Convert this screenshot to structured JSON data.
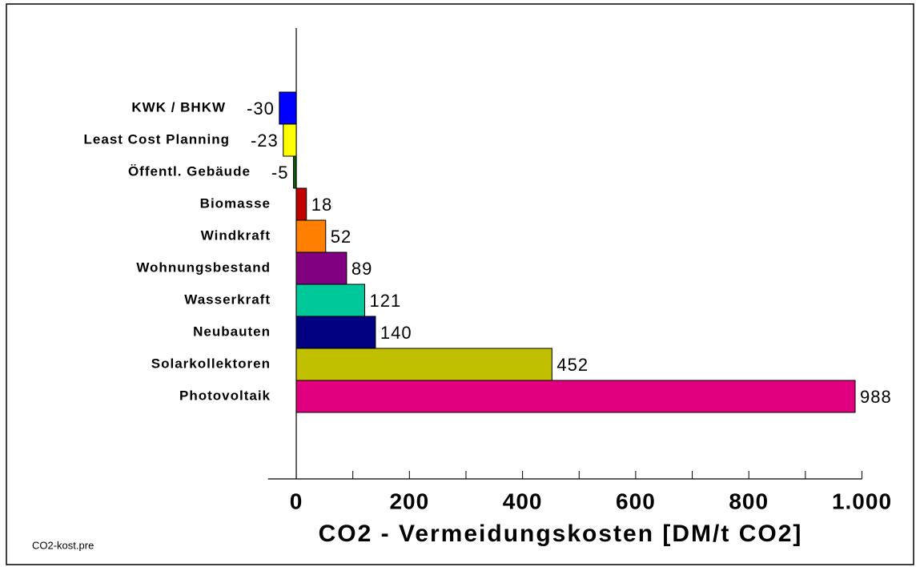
{
  "chart_data": {
    "type": "bar",
    "orientation": "horizontal",
    "x_axis_label": "CO2 - Vermeidungskosten [DM/t CO2]",
    "footnote": "CO2-kost.pre",
    "categories": [
      "KWK / BHKW",
      "Least Cost Planning",
      "Öffentl. Gebäude",
      "Biomasse",
      "Windkraft",
      "Wohnungsbestand",
      "Wasserkraft",
      "Neubauten",
      "Solarkollektoren",
      "Photovoltaik"
    ],
    "values": [
      -30,
      -23,
      -5,
      18,
      52,
      89,
      121,
      140,
      452,
      988
    ],
    "colors": [
      "#0000ff",
      "#ffff00",
      "#006400",
      "#c00000",
      "#ff8000",
      "#800080",
      "#00c89a",
      "#000080",
      "#c0c000",
      "#e0007f"
    ],
    "xlim": [
      -50,
      1000
    ],
    "xticks": [
      0,
      200,
      400,
      600,
      800,
      {
        "value": 1000,
        "label": "1.000"
      }
    ],
    "minor_xticks": [
      100,
      300,
      500,
      700,
      900
    ],
    "grid": false
  }
}
